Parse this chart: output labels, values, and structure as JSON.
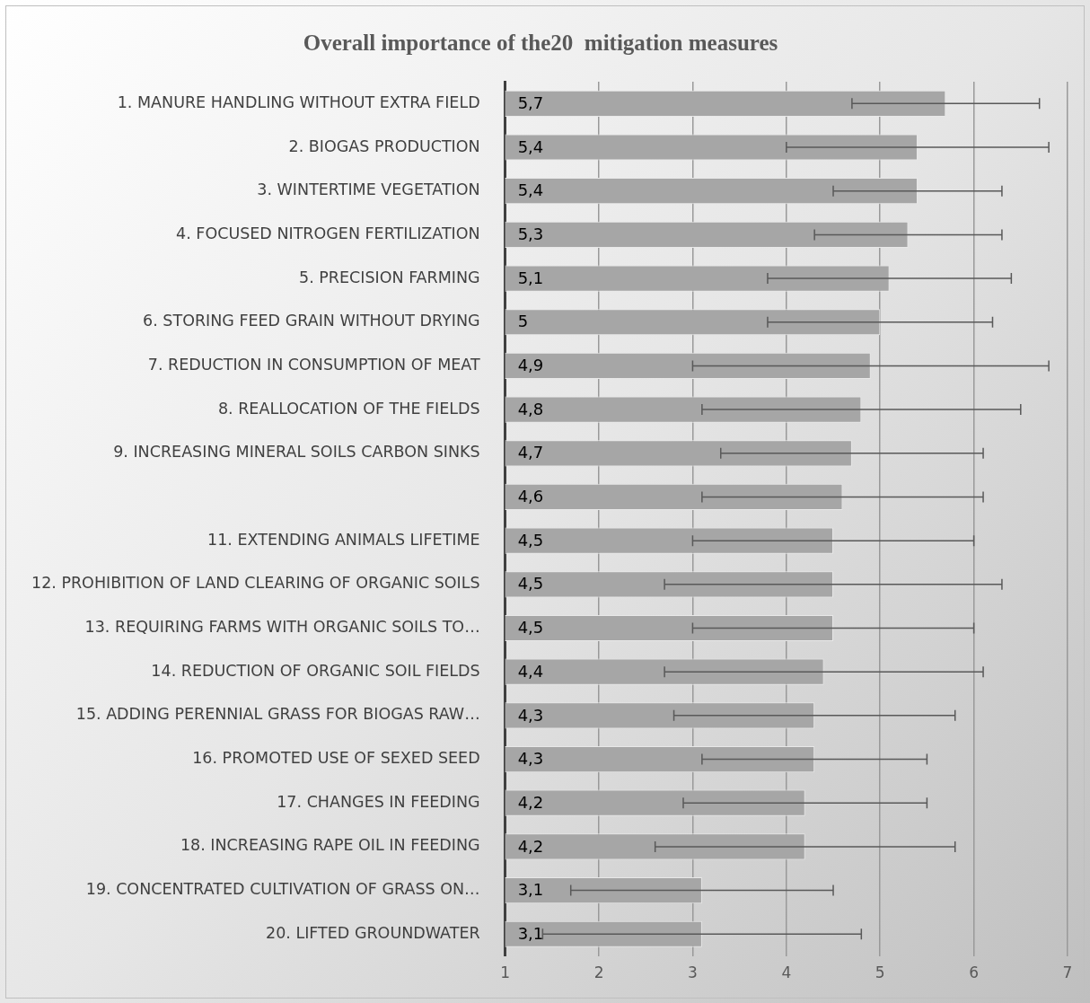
{
  "chart_data": {
    "type": "bar",
    "orientation": "horizontal",
    "title": "Overall importance of the20  mitigation measures",
    "categories": [
      "1. MANURE HANDLING WITHOUT EXTRA FIELD",
      "2. BIOGAS PRODUCTION",
      "3. WINTERTIME VEGETATION",
      "4. FOCUSED NITROGEN FERTILIZATION",
      "5. PRECISION FARMING",
      "6. STORING FEED GRAIN WITHOUT DRYING",
      "7. REDUCTION IN CONSUMPTION OF MEAT",
      "8. REALLOCATION OF THE FIELDS",
      "9. INCREASING MINERAL SOILS CARBON SINKS",
      null,
      "11. EXTENDING ANIMALS LIFETIME",
      "12. PROHIBITION OF LAND CLEARING OF ORGANIC SOILS",
      "13. REQUIRING FARMS WITH ORGANIC SOILS TO…",
      "14. REDUCTION OF ORGANIC SOIL FIELDS",
      "15. ADDING PERENNIAL GRASS FOR BIOGAS RAW…",
      "16. PROMOTED USE OF SEXED SEED",
      "17. CHANGES IN FEEDING",
      "18. INCREASING RAPE OIL IN FEEDING",
      "19. CONCENTRATED CULTIVATION OF GRASS ON…",
      "20. LIFTED GROUNDWATER"
    ],
    "values": [
      5.7,
      5.4,
      5.4,
      5.3,
      5.1,
      5,
      4.9,
      4.8,
      4.7,
      4.6,
      4.5,
      4.5,
      4.5,
      4.4,
      4.3,
      4.3,
      4.2,
      4.2,
      3.1,
      3.1
    ],
    "value_labels": [
      "5,7",
      "5,4",
      "5,4",
      "5,3",
      "5,1",
      "5",
      "4,9",
      "4,8",
      "4,7",
      "4,6",
      "4,5",
      "4,5",
      "4,5",
      "4,4",
      "4,3",
      "4,3",
      "4,2",
      "4,2",
      "3,1",
      "3,1"
    ],
    "errors": [
      1.0,
      1.4,
      0.9,
      1.0,
      1.3,
      1.2,
      1.9,
      1.7,
      1.4,
      1.5,
      1.5,
      1.8,
      1.5,
      1.7,
      1.5,
      1.2,
      1.3,
      1.6,
      1.4,
      1.7
    ],
    "color": "#a6a6a6",
    "xlim": [
      1,
      7
    ],
    "xticks": [
      1,
      2,
      3,
      4,
      5,
      6,
      7
    ],
    "grid": "x"
  }
}
